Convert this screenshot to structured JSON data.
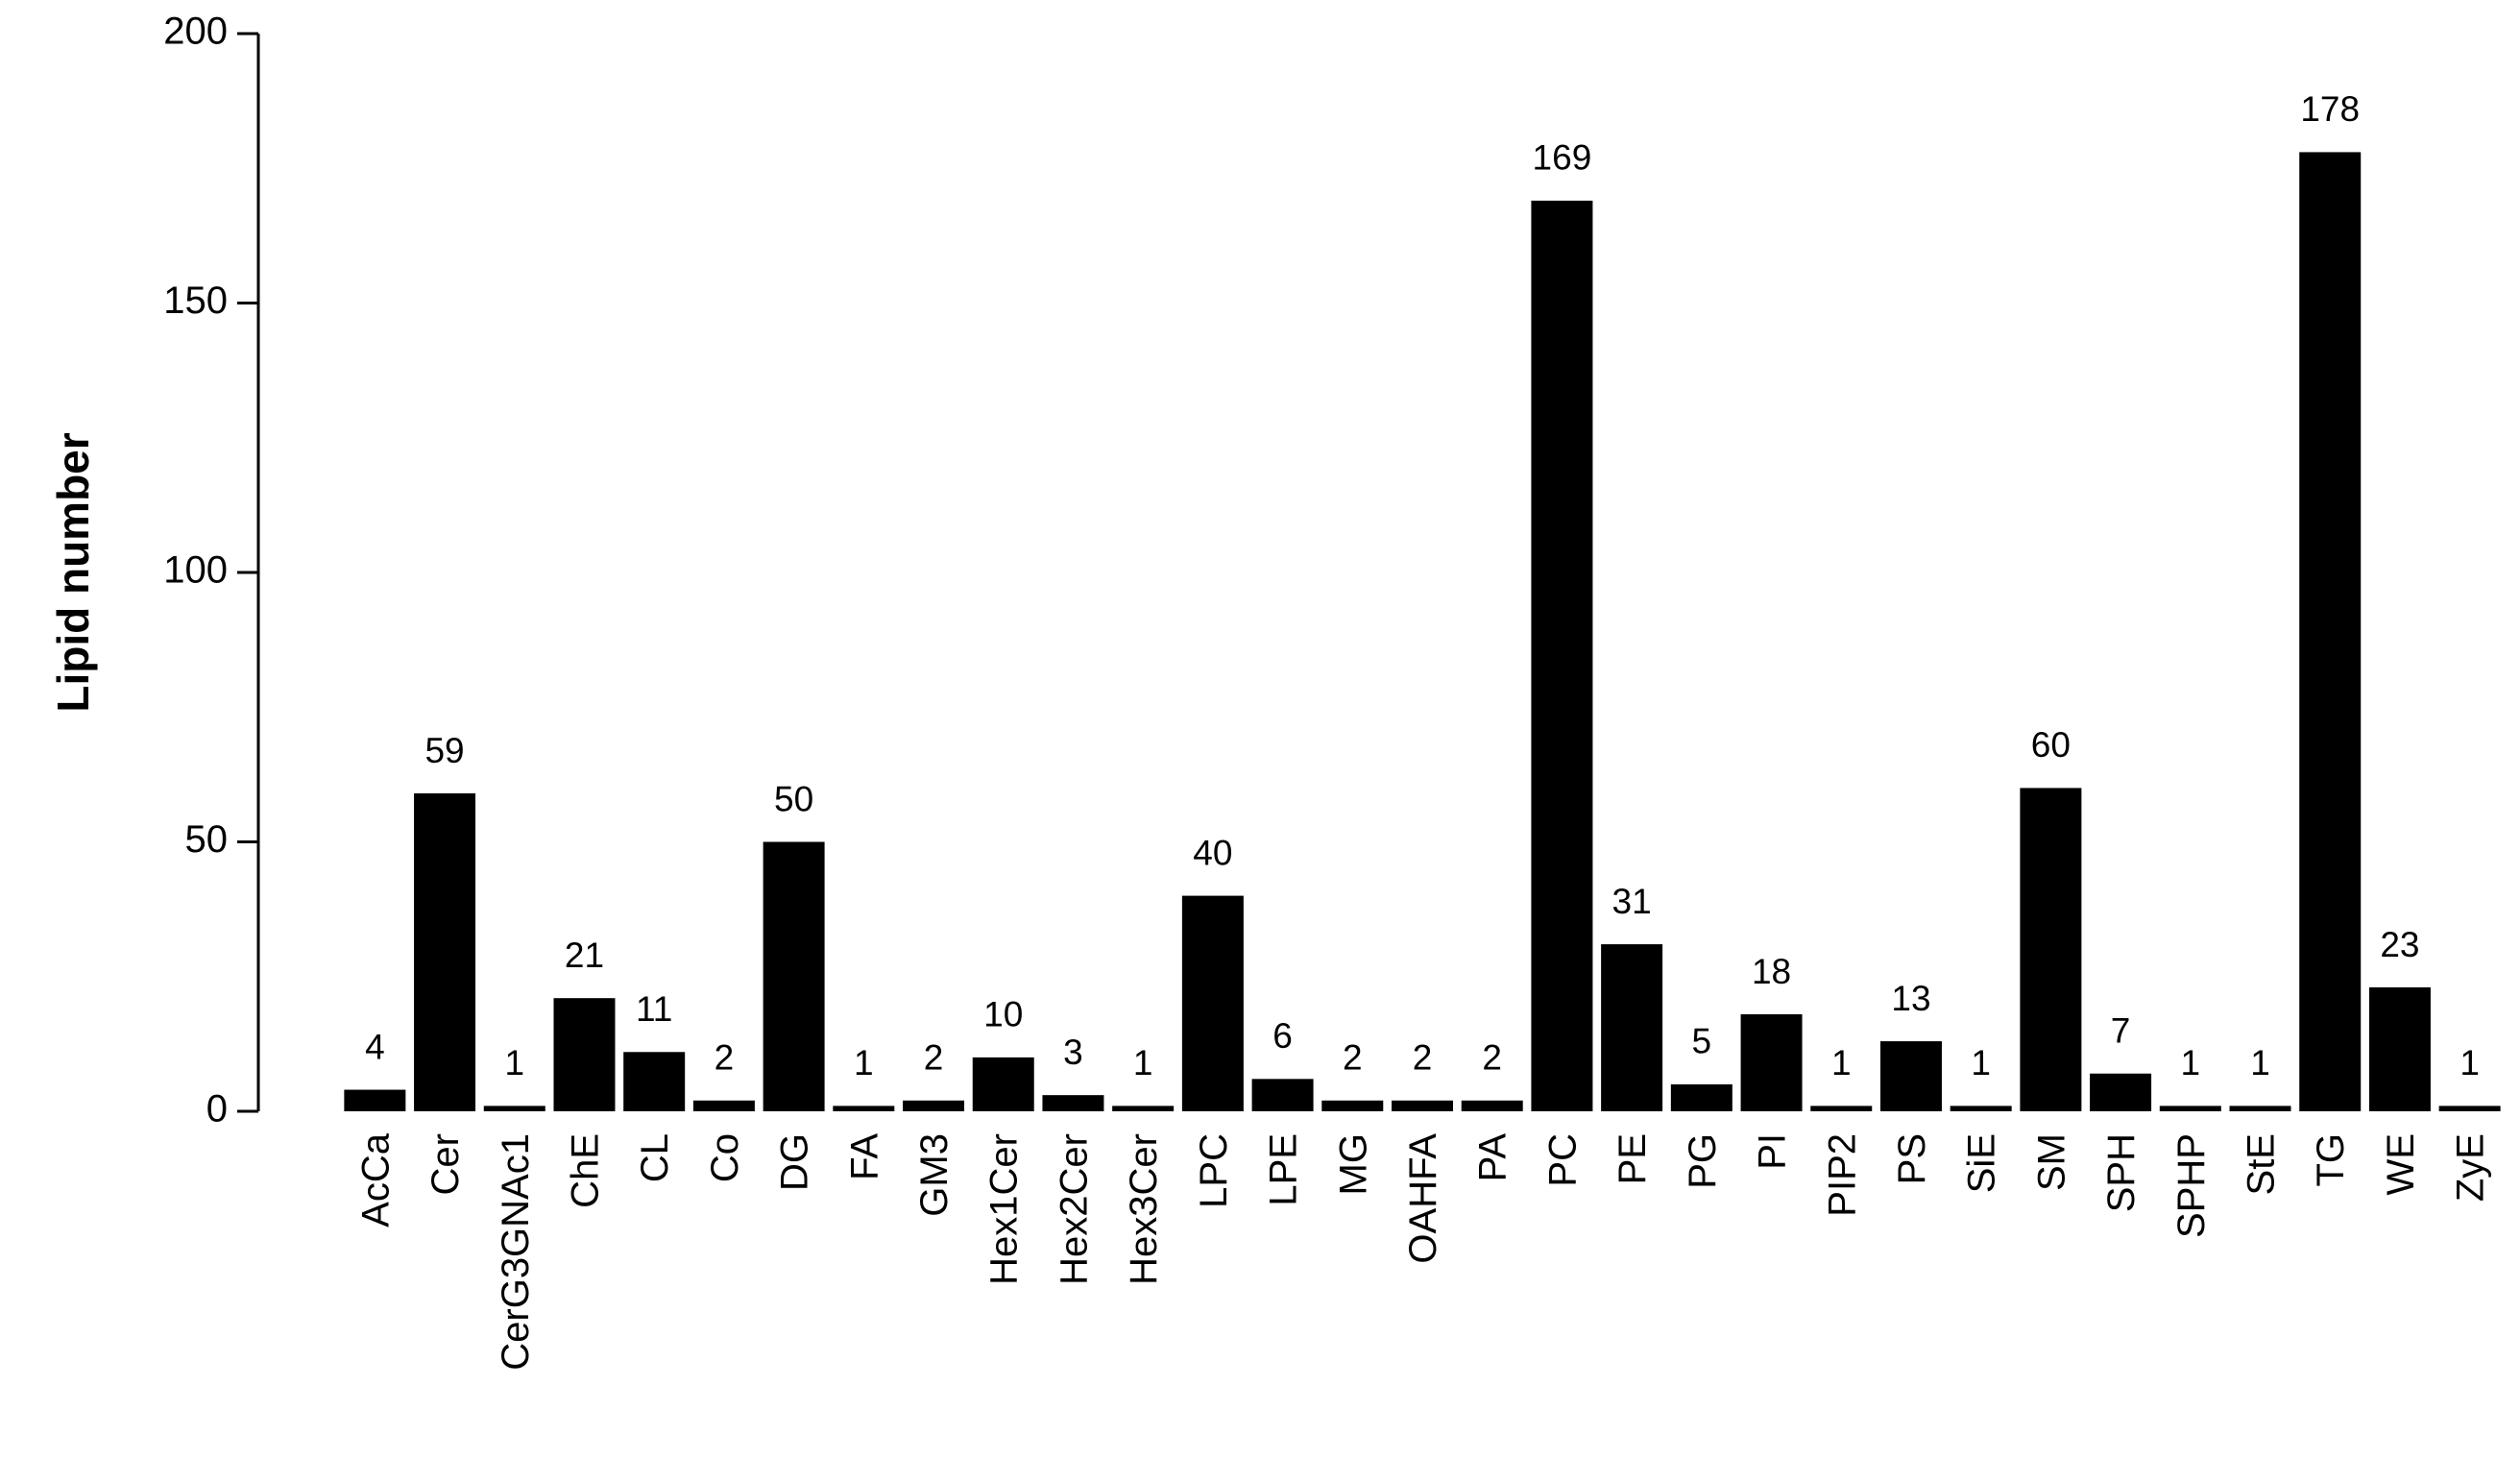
{
  "chart_data": {
    "type": "bar",
    "y_label": "Lipid number",
    "categories": [
      "AcCa",
      "Cer",
      "CerG3GNAc1",
      "ChE",
      "CL",
      "Co",
      "DG",
      "FA",
      "GM3",
      "Hex1Cer",
      "Hex2Cer",
      "Hex3Cer",
      "LPC",
      "LPE",
      "MG",
      "OAHFA",
      "PA",
      "PC",
      "PE",
      "PG",
      "PI",
      "PIP2",
      "PS",
      "SiE",
      "SM",
      "SPH",
      "SPHP",
      "StE",
      "TG",
      "WE",
      "ZyE"
    ],
    "values": [
      4,
      59,
      1,
      21,
      11,
      2,
      50,
      1,
      2,
      10,
      3,
      1,
      40,
      6,
      2,
      2,
      2,
      169,
      31,
      5,
      18,
      1,
      13,
      1,
      60,
      7,
      1,
      1,
      178,
      23,
      1
    ],
    "color": "#000000",
    "ylim": [
      0,
      200
    ],
    "yticks": [
      0,
      50,
      100,
      150,
      200
    ],
    "grid": false
  }
}
